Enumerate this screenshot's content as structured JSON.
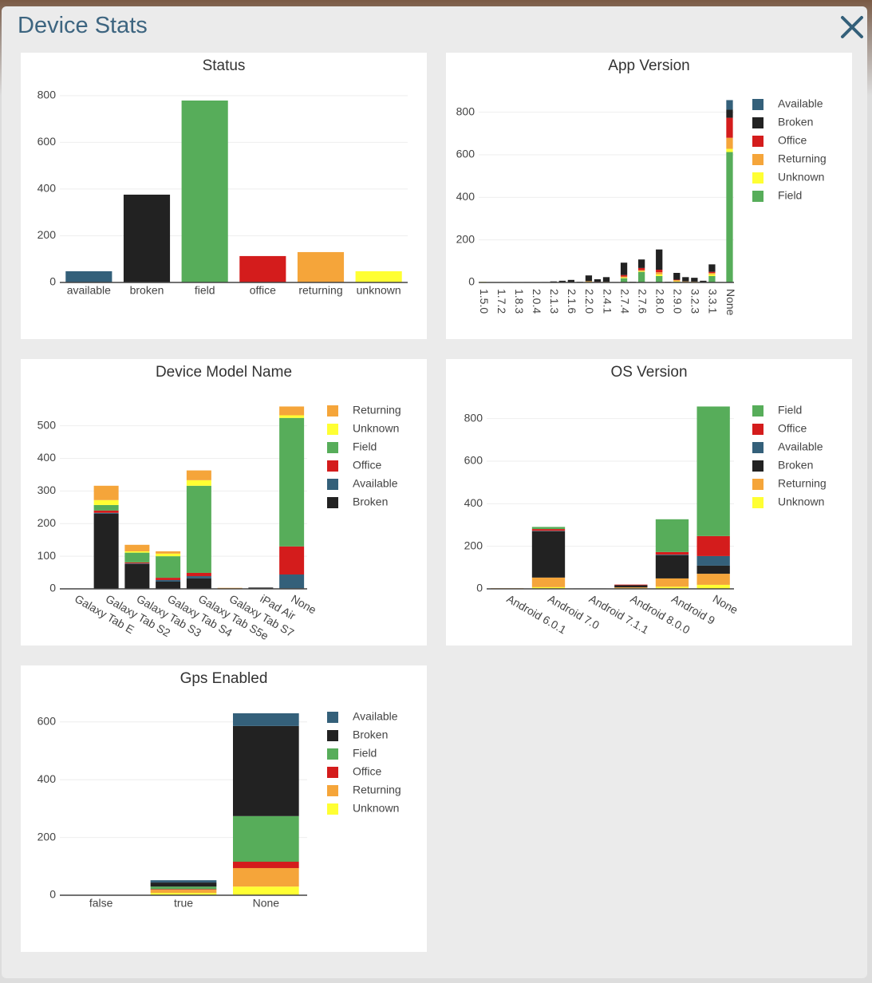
{
  "header": {
    "title": "Device Stats"
  },
  "chart_data": [
    {
      "type": "bar",
      "title": "Status",
      "categories": [
        "available",
        "broken",
        "field",
        "office",
        "returning",
        "unknown"
      ],
      "values": [
        48,
        376,
        779,
        113,
        130,
        48
      ],
      "colors": [
        "#34607a",
        "#222222",
        "#57ad5a",
        "#d41c1c",
        "#f5a53a",
        "#ffff33"
      ],
      "ylim": [
        0,
        820
      ],
      "yticks": [
        0,
        200,
        400,
        600,
        800
      ],
      "grid": true
    },
    {
      "type": "bar",
      "barmode": "stack",
      "title": "App Version",
      "categories": [
        "1.5.0",
        null,
        "1.7.2",
        null,
        "1.8.3",
        null,
        "2.0.4",
        null,
        "2.1.3",
        null,
        "2.1.6",
        null,
        "2.2.0",
        null,
        "2.4.1",
        null,
        "2.7.4",
        null,
        "2.7.6",
        null,
        "2.8.0",
        null,
        "2.9.0",
        null,
        "3.2.3",
        null,
        "3.3.1",
        null,
        "None"
      ],
      "series": [
        {
          "name": "Available",
          "color": "#34607a",
          "values": [
            0,
            0,
            0,
            0,
            0,
            0,
            0,
            0,
            0,
            0,
            0,
            0,
            0,
            0,
            0,
            0,
            0,
            0,
            0,
            0,
            0,
            0,
            0,
            0,
            0,
            0,
            0,
            0,
            45
          ]
        },
        {
          "name": "Broken",
          "color": "#222222",
          "values": [
            0,
            0,
            0,
            2,
            0,
            2,
            0,
            2,
            3,
            6,
            10,
            3,
            27,
            12,
            22,
            2,
            58,
            3,
            40,
            2,
            95,
            3,
            32,
            20,
            18,
            6,
            35,
            2,
            38
          ]
        },
        {
          "name": "Office",
          "color": "#d41c1c",
          "values": [
            0,
            0,
            0,
            0,
            0,
            0,
            0,
            0,
            0,
            0,
            0,
            0,
            0,
            3,
            0,
            0,
            7,
            0,
            10,
            0,
            12,
            0,
            2,
            0,
            0,
            0,
            5,
            0,
            94
          ]
        },
        {
          "name": "Returning",
          "color": "#f5a53a",
          "values": [
            0,
            0,
            0,
            0,
            0,
            0,
            0,
            0,
            0,
            0,
            0,
            0,
            3,
            0,
            3,
            0,
            5,
            0,
            5,
            0,
            10,
            0,
            5,
            3,
            2,
            0,
            7,
            0,
            52
          ]
        },
        {
          "name": "Unknown",
          "color": "#ffff33",
          "values": [
            3,
            2,
            2,
            0,
            2,
            0,
            2,
            0,
            2,
            2,
            2,
            0,
            3,
            0,
            0,
            0,
            3,
            0,
            3,
            0,
            8,
            0,
            3,
            2,
            2,
            2,
            8,
            0,
            15
          ]
        },
        {
          "name": "Field",
          "color": "#57ad5a",
          "values": [
            0,
            0,
            0,
            0,
            0,
            0,
            0,
            0,
            0,
            0,
            0,
            0,
            0,
            0,
            0,
            0,
            20,
            0,
            50,
            0,
            30,
            0,
            3,
            0,
            0,
            0,
            30,
            0,
            613
          ]
        }
      ],
      "ylim": [
        0,
        900
      ],
      "yticks": [
        0,
        200,
        400,
        600,
        800
      ],
      "grid": true
    },
    {
      "type": "bar",
      "barmode": "stack",
      "title": "Device Model Name",
      "categories": [
        "Galaxy Tab E",
        "Galaxy Tab S2",
        "Galaxy Tab S3",
        "Galaxy Tab S4",
        "Galaxy Tab S5e",
        "Galaxy Tab S7",
        "iPad Air",
        "None"
      ],
      "series": [
        {
          "name": "Returning",
          "color": "#f5a53a",
          "values": [
            0,
            44,
            20,
            7,
            30,
            3,
            0,
            27
          ]
        },
        {
          "name": "Unknown",
          "color": "#ffff33",
          "values": [
            0,
            15,
            4,
            8,
            17,
            0,
            0,
            8
          ]
        },
        {
          "name": "Field",
          "color": "#57ad5a",
          "values": [
            0,
            17,
            30,
            66,
            267,
            0,
            0,
            394
          ]
        },
        {
          "name": "Office",
          "color": "#d41c1c",
          "values": [
            0,
            7,
            3,
            7,
            10,
            0,
            0,
            86
          ]
        },
        {
          "name": "Available",
          "color": "#34607a",
          "values": [
            0,
            3,
            2,
            5,
            7,
            0,
            0,
            42
          ]
        },
        {
          "name": "Broken",
          "color": "#222222",
          "values": [
            1,
            230,
            76,
            22,
            32,
            0,
            4,
            2
          ]
        }
      ],
      "ylim": [
        0,
        587
      ],
      "yticks": [
        0,
        100,
        200,
        300,
        400,
        500
      ],
      "grid": true
    },
    {
      "type": "bar",
      "barmode": "stack",
      "title": "OS Version",
      "categories": [
        "Android 6.0.1",
        "Android 7.0",
        "Android 7.1.1",
        "Android 8.0.0",
        "Android 9",
        "None"
      ],
      "series": [
        {
          "name": "Field",
          "color": "#57ad5a",
          "values": [
            0,
            10,
            0,
            0,
            154,
            609
          ]
        },
        {
          "name": "Office",
          "color": "#d41c1c",
          "values": [
            0,
            8,
            0,
            3,
            12,
            94
          ]
        },
        {
          "name": "Available",
          "color": "#34607a",
          "values": [
            0,
            2,
            0,
            0,
            3,
            45
          ]
        },
        {
          "name": "Broken",
          "color": "#222222",
          "values": [
            0,
            218,
            2,
            10,
            109,
            38
          ]
        },
        {
          "name": "Returning",
          "color": "#f5a53a",
          "values": [
            2,
            45,
            0,
            4,
            39,
            52
          ]
        },
        {
          "name": "Unknown",
          "color": "#ffff33",
          "values": [
            1,
            8,
            0,
            3,
            10,
            19
          ]
        }
      ],
      "ylim": [
        0,
        900
      ],
      "yticks": [
        0,
        200,
        400,
        600,
        800
      ],
      "grid": true
    },
    {
      "type": "bar",
      "barmode": "stack",
      "title": "Gps Enabled",
      "categories": [
        "false",
        "true",
        "None"
      ],
      "series": [
        {
          "name": "Available",
          "color": "#34607a",
          "values": [
            0,
            8,
            44
          ]
        },
        {
          "name": "Broken",
          "color": "#222222",
          "values": [
            0,
            14,
            312
          ]
        },
        {
          "name": "Field",
          "color": "#57ad5a",
          "values": [
            0,
            9,
            158
          ]
        },
        {
          "name": "Office",
          "color": "#d41c1c",
          "values": [
            0,
            2,
            22
          ]
        },
        {
          "name": "Returning",
          "color": "#f5a53a",
          "values": [
            0,
            11,
            64
          ]
        },
        {
          "name": "Unknown",
          "color": "#ffff33",
          "values": [
            0,
            8,
            30
          ]
        }
      ],
      "ylim": [
        0,
        663
      ],
      "yticks": [
        0,
        200,
        400,
        600
      ],
      "grid": true
    }
  ]
}
